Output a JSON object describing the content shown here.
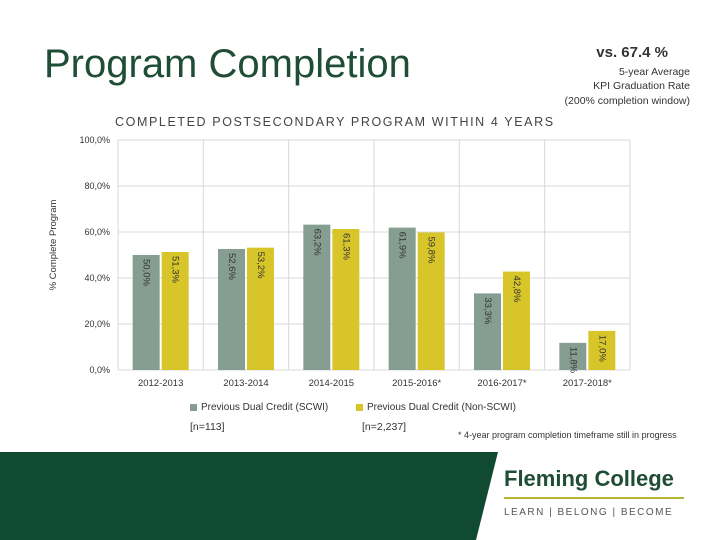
{
  "page": {
    "title": "Program Completion",
    "kpi": {
      "heading": "vs. 67.4 %",
      "line1": "5-year Average",
      "line2": "KPI Graduation Rate",
      "line3": "(200% completion window)"
    },
    "footnote": "* 4-year program completion timeframe still in progress"
  },
  "chart_data": {
    "type": "bar",
    "title": "COMPLETED POSTSECONDARY PROGRAM WITHIN 4 YEARS",
    "xlabel": "",
    "ylabel": "% Complete Program",
    "ylim": [
      0,
      100
    ],
    "yticks": [
      "0,0%",
      "20,0%",
      "40,0%",
      "60,0%",
      "80,0%",
      "100,0%"
    ],
    "grid": true,
    "legend_position": "bottom",
    "categories": [
      "2012-2013",
      "2013-2014",
      "2014-2015",
      "2015-2016*",
      "2016-2017*",
      "2017-2018*"
    ],
    "series": [
      {
        "name": "Previous Dual Credit (SCWI)",
        "n_label": "[n=113]",
        "color": "#869d92",
        "values": [
          50.0,
          52.6,
          63.2,
          61.9,
          33.3,
          11.8
        ],
        "labels": [
          "50,0%",
          "52,6%",
          "63,2%",
          "61,9%",
          "33,3%",
          "11,8%"
        ]
      },
      {
        "name": "Previous Dual Credit (Non-SCWI)",
        "n_label": "[n=2,237]",
        "color": "#d8c52a",
        "values": [
          51.3,
          53.2,
          61.3,
          59.8,
          42.8,
          17.0
        ],
        "labels": [
          "51,3%",
          "53,2%",
          "61,3%",
          "59,8%",
          "42,8%",
          "17,0%"
        ]
      }
    ]
  },
  "footer": {
    "college_name": "Fleming College",
    "tagline": "LEARN | BELONG | BECOME"
  }
}
